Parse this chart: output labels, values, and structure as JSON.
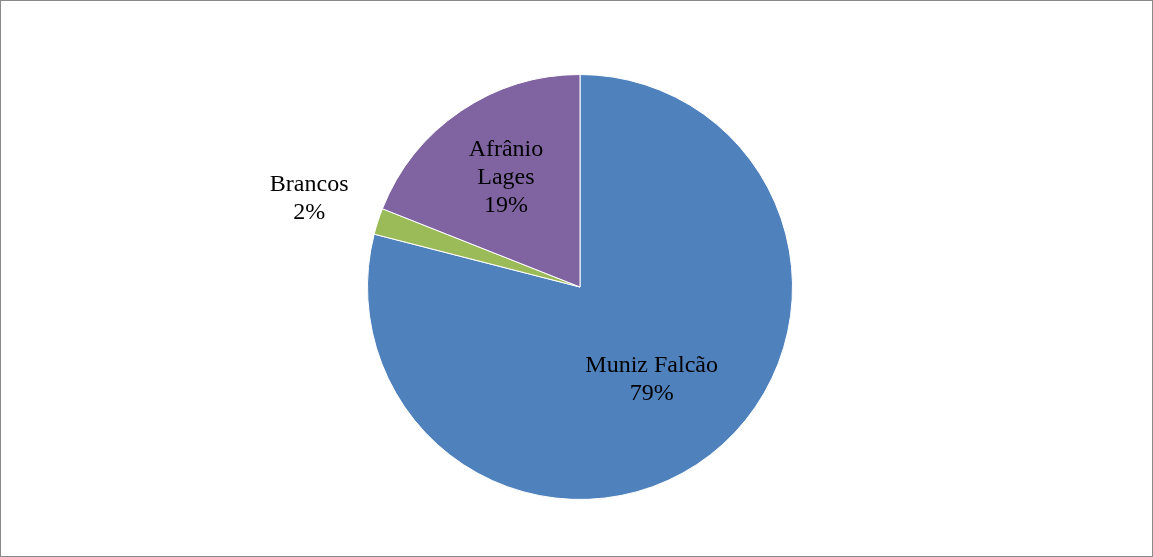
{
  "chart_data": {
    "type": "pie",
    "categories": [
      "Muniz Falcão",
      "Brancos",
      "Afrânio Lages"
    ],
    "values": [
      79,
      2,
      19
    ],
    "colors": [
      "#4f81bd",
      "#9bbb59",
      "#8064a2"
    ],
    "value_labels": [
      "79%",
      "2%",
      "19%"
    ],
    "legend": false
  }
}
